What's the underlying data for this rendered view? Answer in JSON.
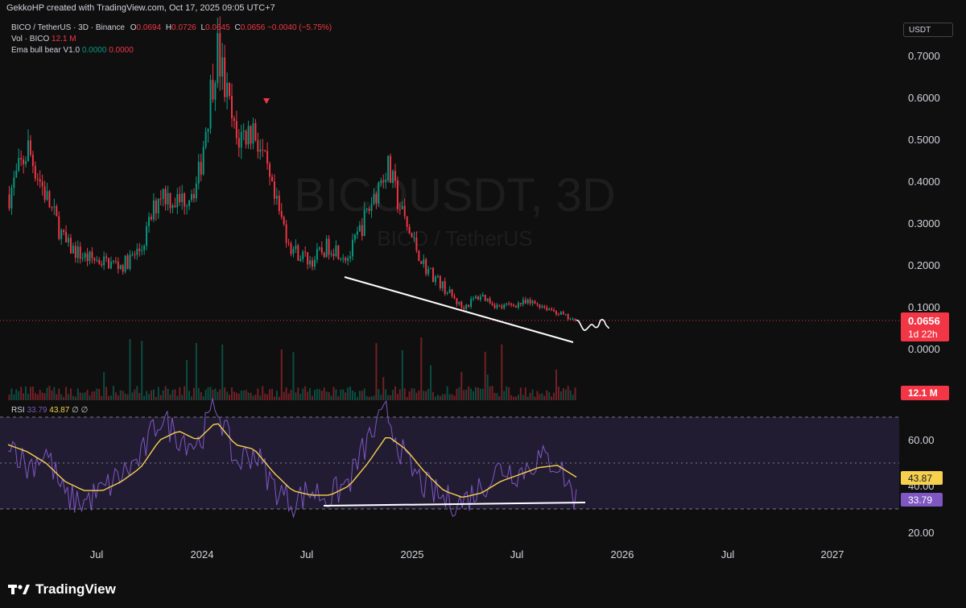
{
  "header": {
    "attribution": "GekkoHP created with TradingView.com, Oct 17, 2025 09:05 UTC+7"
  },
  "legend": {
    "symbol": "BICO / TetherUS · 3D · Binance",
    "open_label": "O",
    "open": "0.0694",
    "high_label": "H",
    "high": "0.0726",
    "low_label": "L",
    "low": "0.0645",
    "close_label": "C",
    "close": "0.0656",
    "change": "−0.0040 (−5.75%)",
    "volume_label": "Vol · BICO",
    "volume": "12.1 M",
    "indicator_name": "Ema bull bear V1.0",
    "indicator_val1": "0.0000",
    "indicator_val2": "0.0000"
  },
  "rsi_legend": {
    "name": "RSI",
    "rsi": "33.79",
    "ma": "43.87",
    "extra1": "∅",
    "extra2": "∅"
  },
  "currency_button": "USDT",
  "watermark": {
    "main": "BICOUSDT, 3D",
    "sub": "BICO / TetherUS"
  },
  "badges": {
    "price": "0.0656",
    "countdown": "1d 22h",
    "volume": "12.1 M",
    "rsi_ma": "43.87",
    "rsi": "33.79"
  },
  "branding": "TradingView",
  "colors": {
    "up": "#089981",
    "down": "#f23645",
    "rsi": "#7e57c2",
    "rsi_ma": "#f7d04e",
    "background": "#0f0f0f"
  },
  "chart_data": [
    {
      "type": "candlestick",
      "title": "BICO / TetherUS · 3D · Binance",
      "x_labels": [
        "Jul",
        "2024",
        "Jul",
        "2025",
        "Jul",
        "2026",
        "Jul",
        "2027"
      ],
      "y_ticks": [
        "0.7000",
        "0.6000",
        "0.5000",
        "0.4000",
        "0.3000",
        "0.2000",
        "0.1000",
        "0.0000"
      ],
      "ylim": [
        0,
        0.7
      ],
      "current_price": 0.0656,
      "price_series": [
        {
          "t": "2023-04",
          "v": 0.37
        },
        {
          "t": "2023-05",
          "v": 0.48
        },
        {
          "t": "2023-06",
          "v": 0.36
        },
        {
          "t": "2023-07",
          "v": 0.25
        },
        {
          "t": "2023-08",
          "v": 0.22
        },
        {
          "t": "2023-09",
          "v": 0.21
        },
        {
          "t": "2023-10",
          "v": 0.2
        },
        {
          "t": "2023-11",
          "v": 0.24
        },
        {
          "t": "2023-12",
          "v": 0.38
        },
        {
          "t": "2024-01",
          "v": 0.35
        },
        {
          "t": "2024-02",
          "v": 0.4
        },
        {
          "t": "2024-03",
          "v": 0.72
        },
        {
          "t": "2024-04",
          "v": 0.5
        },
        {
          "t": "2024-05",
          "v": 0.53
        },
        {
          "t": "2024-06",
          "v": 0.36
        },
        {
          "t": "2024-07",
          "v": 0.24
        },
        {
          "t": "2024-08",
          "v": 0.21
        },
        {
          "t": "2024-09",
          "v": 0.25
        },
        {
          "t": "2024-10",
          "v": 0.22
        },
        {
          "t": "2024-11",
          "v": 0.33
        },
        {
          "t": "2024-12",
          "v": 0.44
        },
        {
          "t": "2025-01",
          "v": 0.3
        },
        {
          "t": "2025-02",
          "v": 0.2
        },
        {
          "t": "2025-03",
          "v": 0.15
        },
        {
          "t": "2025-04",
          "v": 0.1
        },
        {
          "t": "2025-05",
          "v": 0.13
        },
        {
          "t": "2025-06",
          "v": 0.1
        },
        {
          "t": "2025-07",
          "v": 0.11
        },
        {
          "t": "2025-08",
          "v": 0.11
        },
        {
          "t": "2025-09",
          "v": 0.09
        },
        {
          "t": "2025-10",
          "v": 0.0656
        }
      ]
    },
    {
      "type": "bar",
      "title": "Vol · BICO",
      "last_value": "12.1 M"
    },
    {
      "type": "line",
      "title": "RSI",
      "y_ticks": [
        "60.00",
        "40.00",
        "20.00"
      ],
      "band": [
        30,
        70
      ],
      "ylim": [
        15,
        80
      ],
      "series": [
        {
          "name": "RSI",
          "values": [
            62,
            48,
            55,
            35,
            33,
            38,
            45,
            52,
            70,
            62,
            58,
            76,
            50,
            55,
            40,
            33,
            38,
            35,
            42,
            60,
            72,
            50,
            40,
            34,
            33,
            40,
            48,
            46,
            52,
            50,
            33.79
          ]
        },
        {
          "name": "MA",
          "values": [
            58,
            55,
            50,
            42,
            38,
            38,
            42,
            48,
            60,
            64,
            60,
            68,
            58,
            56,
            46,
            38,
            36,
            36,
            40,
            50,
            62,
            56,
            46,
            38,
            35,
            37,
            42,
            45,
            48,
            49,
            43.87
          ]
        }
      ]
    }
  ]
}
